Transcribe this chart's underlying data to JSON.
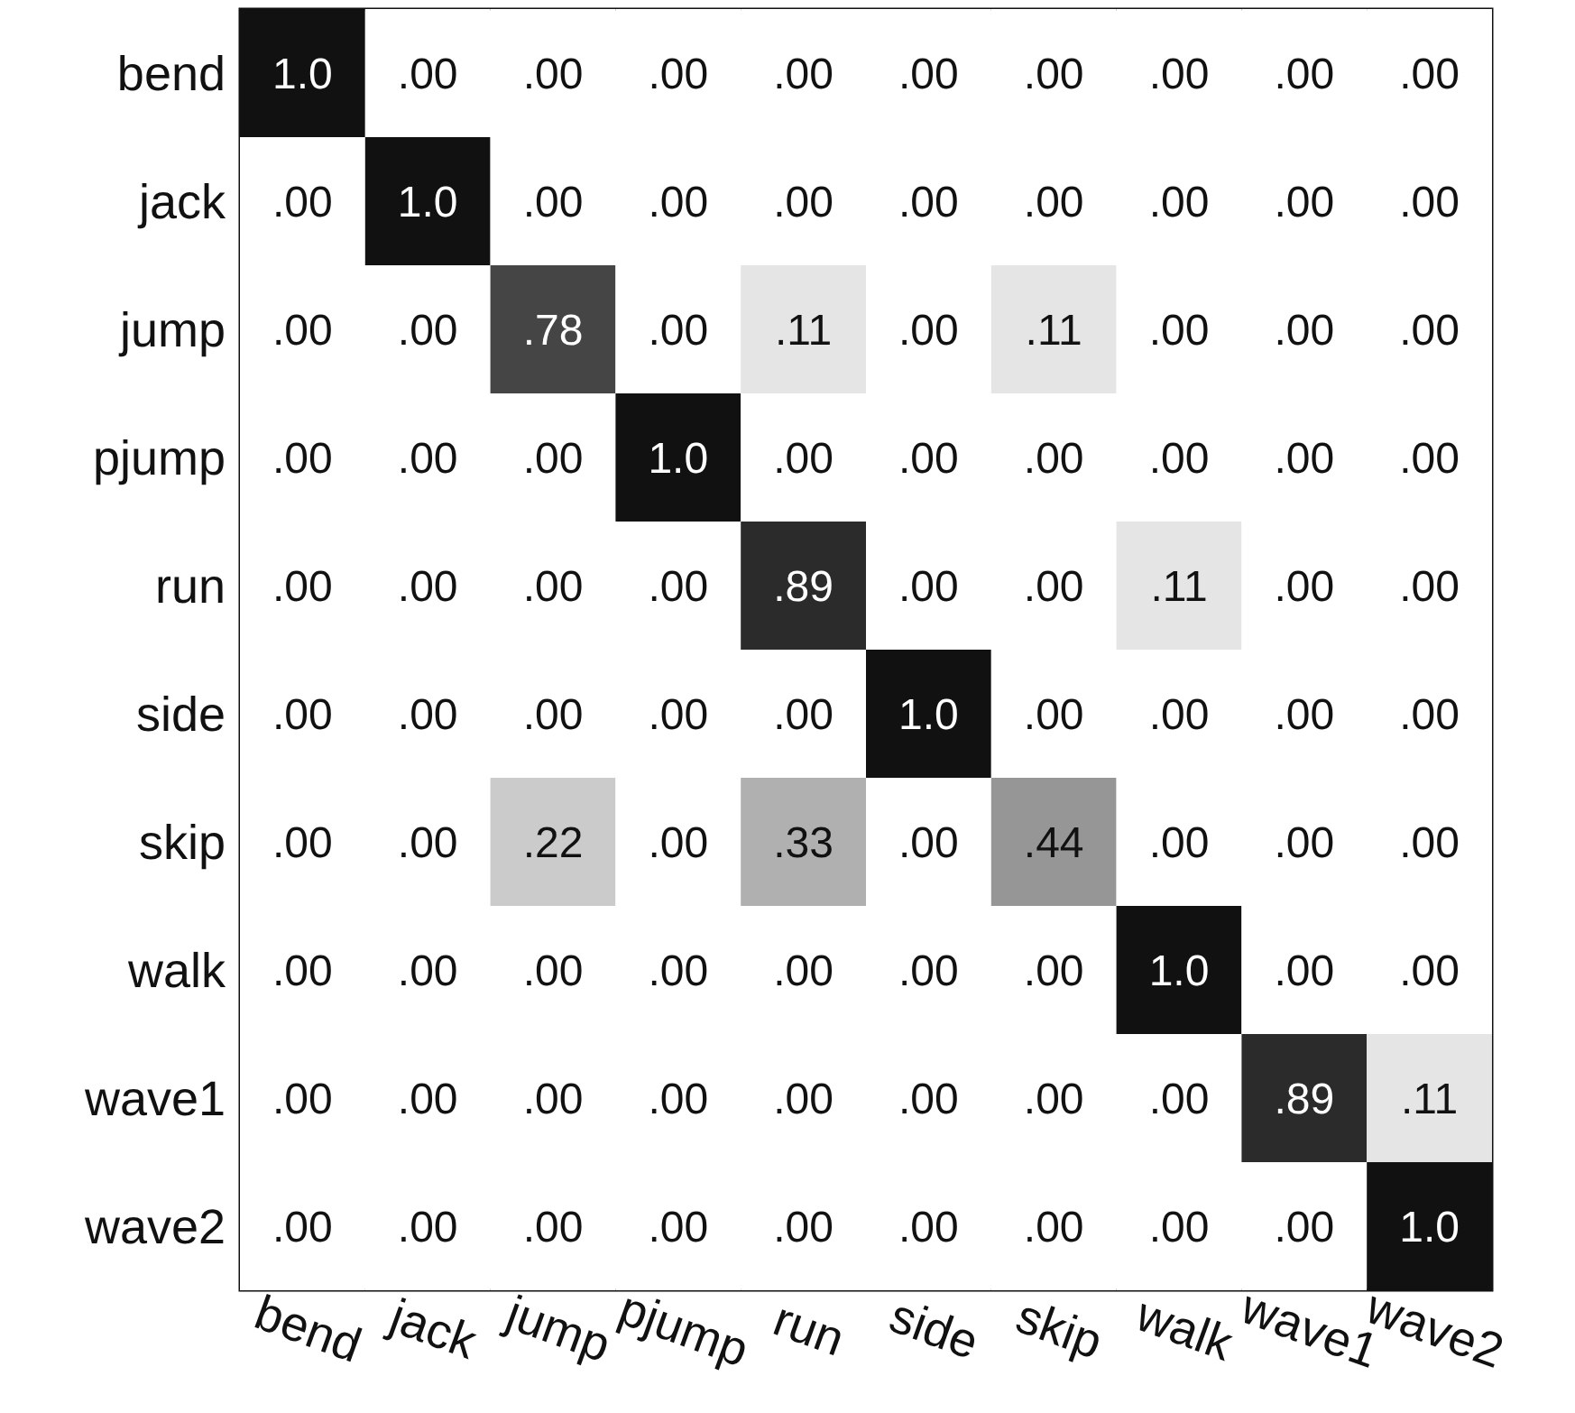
{
  "chart_data": {
    "type": "heatmap",
    "categories": [
      "bend",
      "jack",
      "jump",
      "pjump",
      "run",
      "side",
      "skip",
      "walk",
      "wave1",
      "wave2"
    ],
    "y_categories": [
      "bend",
      "jack",
      "jump",
      "pjump",
      "run",
      "side",
      "skip",
      "walk",
      "wave1",
      "wave2"
    ],
    "cells": [
      [
        1.0,
        0,
        0,
        0,
        0,
        0,
        0,
        0,
        0,
        0
      ],
      [
        0,
        1.0,
        0,
        0,
        0,
        0,
        0,
        0,
        0,
        0
      ],
      [
        0,
        0,
        0.78,
        0,
        0.11,
        0,
        0.11,
        0,
        0,
        0
      ],
      [
        0,
        0,
        0,
        1.0,
        0,
        0,
        0,
        0,
        0,
        0
      ],
      [
        0,
        0,
        0,
        0,
        0.89,
        0,
        0,
        0.11,
        0,
        0
      ],
      [
        0,
        0,
        0,
        0,
        0,
        1.0,
        0,
        0,
        0,
        0
      ],
      [
        0,
        0,
        0.22,
        0,
        0.33,
        0,
        0.44,
        0,
        0,
        0
      ],
      [
        0,
        0,
        0,
        0,
        0,
        0,
        0,
        1.0,
        0,
        0
      ],
      [
        0,
        0,
        0,
        0,
        0,
        0,
        0,
        0,
        0.89,
        0.11
      ],
      [
        0,
        0,
        0,
        0,
        0,
        0,
        0,
        0,
        0,
        1.0
      ]
    ],
    "cell_labels": [
      [
        "1.0",
        ".00",
        ".00",
        ".00",
        ".00",
        ".00",
        ".00",
        ".00",
        ".00",
        ".00"
      ],
      [
        ".00",
        "1.0",
        ".00",
        ".00",
        ".00",
        ".00",
        ".00",
        ".00",
        ".00",
        ".00"
      ],
      [
        ".00",
        ".00",
        ".78",
        ".00",
        ".11",
        ".00",
        ".11",
        ".00",
        ".00",
        ".00"
      ],
      [
        ".00",
        ".00",
        ".00",
        "1.0",
        ".00",
        ".00",
        ".00",
        ".00",
        ".00",
        ".00"
      ],
      [
        ".00",
        ".00",
        ".00",
        ".00",
        ".89",
        ".00",
        ".00",
        ".11",
        ".00",
        ".00"
      ],
      [
        ".00",
        ".00",
        ".00",
        ".00",
        ".00",
        "1.0",
        ".00",
        ".00",
        ".00",
        ".00"
      ],
      [
        ".00",
        ".00",
        ".22",
        ".00",
        ".33",
        ".00",
        ".44",
        ".00",
        ".00",
        ".00"
      ],
      [
        ".00",
        ".00",
        ".00",
        ".00",
        ".00",
        ".00",
        ".00",
        "1.0",
        ".00",
        ".00"
      ],
      [
        ".00",
        ".00",
        ".00",
        ".00",
        ".00",
        ".00",
        ".00",
        ".00",
        ".89",
        ".11"
      ],
      [
        ".00",
        ".00",
        ".00",
        ".00",
        ".00",
        ".00",
        ".00",
        ".00",
        ".00",
        "1.0"
      ]
    ]
  }
}
